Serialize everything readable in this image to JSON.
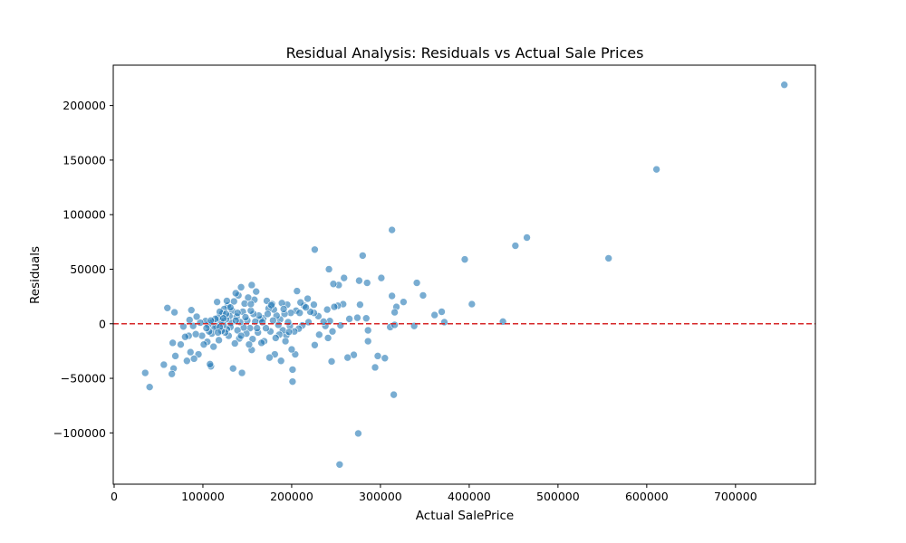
{
  "chart_data": {
    "type": "scatter",
    "title": "Residual Analysis: Residuals vs Actual Sale Prices",
    "xlabel": "Actual SalePrice",
    "ylabel": "Residuals",
    "xlim": [
      -1000,
      790000
    ],
    "ylim": [
      -147000,
      237000
    ],
    "xticks": [
      0,
      100000,
      200000,
      300000,
      400000,
      500000,
      600000,
      700000
    ],
    "xtick_labels": [
      "0",
      "100000",
      "200000",
      "300000",
      "400000",
      "500000",
      "600000",
      "700000"
    ],
    "yticks": [
      -100000,
      -50000,
      0,
      50000,
      100000,
      150000,
      200000
    ],
    "ytick_labels": [
      "−100000",
      "−50000",
      "0",
      "50000",
      "100000",
      "150000",
      "200000"
    ],
    "reference_line": {
      "y": 0,
      "color": "#d62728",
      "style": "dashed"
    },
    "marker_color": "#1f77b4",
    "grid": false,
    "points": [
      {
        "x": 755000,
        "y": 219000
      },
      {
        "x": 611000,
        "y": 141500
      },
      {
        "x": 465000,
        "y": 79000
      },
      {
        "x": 452000,
        "y": 71500
      },
      {
        "x": 557000,
        "y": 60000
      },
      {
        "x": 395000,
        "y": 59000
      },
      {
        "x": 438000,
        "y": 2000
      },
      {
        "x": 403000,
        "y": 18000
      },
      {
        "x": 369000,
        "y": 11000
      },
      {
        "x": 372000,
        "y": 1500
      },
      {
        "x": 361000,
        "y": 8000
      },
      {
        "x": 348000,
        "y": 26000
      },
      {
        "x": 341000,
        "y": 37500
      },
      {
        "x": 338000,
        "y": -2000
      },
      {
        "x": 326000,
        "y": 20000
      },
      {
        "x": 318000,
        "y": 15500
      },
      {
        "x": 316000,
        "y": 10500
      },
      {
        "x": 315000,
        "y": -65000
      },
      {
        "x": 313000,
        "y": 86000
      },
      {
        "x": 313000,
        "y": 25500
      },
      {
        "x": 311000,
        "y": -3000
      },
      {
        "x": 316000,
        "y": -1000
      },
      {
        "x": 305000,
        "y": -31500
      },
      {
        "x": 301000,
        "y": 42000
      },
      {
        "x": 297000,
        "y": -29500
      },
      {
        "x": 294000,
        "y": -40000
      },
      {
        "x": 286000,
        "y": -16000
      },
      {
        "x": 285000,
        "y": 37500
      },
      {
        "x": 284000,
        "y": 5000
      },
      {
        "x": 286000,
        "y": -6000
      },
      {
        "x": 280000,
        "y": 62500
      },
      {
        "x": 276000,
        "y": 39500
      },
      {
        "x": 277000,
        "y": 17500
      },
      {
        "x": 275000,
        "y": -100500
      },
      {
        "x": 274000,
        "y": 5500
      },
      {
        "x": 270000,
        "y": -28500
      },
      {
        "x": 265000,
        "y": 4500
      },
      {
        "x": 263000,
        "y": -31000
      },
      {
        "x": 259000,
        "y": 42000
      },
      {
        "x": 258000,
        "y": 18000
      },
      {
        "x": 255000,
        "y": -1500
      },
      {
        "x": 254000,
        "y": -129000
      },
      {
        "x": 253000,
        "y": 35500
      },
      {
        "x": 252000,
        "y": 16500
      },
      {
        "x": 248000,
        "y": 15500
      },
      {
        "x": 247000,
        "y": 36500
      },
      {
        "x": 245000,
        "y": -34500
      },
      {
        "x": 246000,
        "y": -7000
      },
      {
        "x": 243000,
        "y": 2500
      },
      {
        "x": 242000,
        "y": 50000
      },
      {
        "x": 241000,
        "y": -13000
      },
      {
        "x": 240000,
        "y": 13000
      },
      {
        "x": 238000,
        "y": -2000
      },
      {
        "x": 236000,
        "y": 2000
      },
      {
        "x": 231000,
        "y": -10000
      },
      {
        "x": 230000,
        "y": 7000
      },
      {
        "x": 226000,
        "y": 68000
      },
      {
        "x": 226000,
        "y": -19500
      },
      {
        "x": 225000,
        "y": 10000
      },
      {
        "x": 225000,
        "y": 17500
      },
      {
        "x": 221000,
        "y": 11000
      },
      {
        "x": 219000,
        "y": 1500
      },
      {
        "x": 218000,
        "y": 23000
      },
      {
        "x": 214000,
        "y": 16500
      },
      {
        "x": 212000,
        "y": -1500
      },
      {
        "x": 210000,
        "y": 19500
      },
      {
        "x": 208000,
        "y": -4500
      },
      {
        "x": 206000,
        "y": 30000
      },
      {
        "x": 205000,
        "y": 12000
      },
      {
        "x": 204000,
        "y": -28000
      },
      {
        "x": 203000,
        "y": -7000
      },
      {
        "x": 201000,
        "y": -53000
      },
      {
        "x": 201000,
        "y": -42000
      },
      {
        "x": 200000,
        "y": -23500
      },
      {
        "x": 199000,
        "y": 10000
      },
      {
        "x": 198000,
        "y": -2000
      },
      {
        "x": 196000,
        "y": 1500
      },
      {
        "x": 195000,
        "y": 17500
      },
      {
        "x": 194000,
        "y": -10500
      },
      {
        "x": 193000,
        "y": -16000
      },
      {
        "x": 192000,
        "y": 9000
      },
      {
        "x": 190000,
        "y": -6000
      },
      {
        "x": 189000,
        "y": 19000
      },
      {
        "x": 188000,
        "y": -34000
      },
      {
        "x": 187000,
        "y": 4000
      },
      {
        "x": 186000,
        "y": -10000
      },
      {
        "x": 185000,
        "y": -1000
      },
      {
        "x": 183000,
        "y": 7500
      },
      {
        "x": 181000,
        "y": -28000
      },
      {
        "x": 180000,
        "y": 13000
      },
      {
        "x": 179000,
        "y": 3000
      },
      {
        "x": 178000,
        "y": 18000
      },
      {
        "x": 176000,
        "y": -7000
      },
      {
        "x": 175000,
        "y": -31000
      },
      {
        "x": 174000,
        "y": 14000
      },
      {
        "x": 172000,
        "y": 21000
      },
      {
        "x": 171000,
        "y": -4000
      },
      {
        "x": 169000,
        "y": -16000
      },
      {
        "x": 168000,
        "y": 5000
      },
      {
        "x": 166000,
        "y": -17500
      },
      {
        "x": 165000,
        "y": 4000
      },
      {
        "x": 163000,
        "y": 7500
      },
      {
        "x": 162000,
        "y": -8000
      },
      {
        "x": 160000,
        "y": 29500
      },
      {
        "x": 159000,
        "y": 2000
      },
      {
        "x": 158000,
        "y": 22000
      },
      {
        "x": 157000,
        "y": 9000
      },
      {
        "x": 156000,
        "y": -14000
      },
      {
        "x": 155000,
        "y": 35500
      },
      {
        "x": 155000,
        "y": -24000
      },
      {
        "x": 154000,
        "y": 12000
      },
      {
        "x": 153000,
        "y": -4000
      },
      {
        "x": 151000,
        "y": 24000
      },
      {
        "x": 150000,
        "y": 3000
      },
      {
        "x": 149000,
        "y": -9000
      },
      {
        "x": 147000,
        "y": 18500
      },
      {
        "x": 146000,
        "y": -3500
      },
      {
        "x": 145000,
        "y": 11000
      },
      {
        "x": 144000,
        "y": -45000
      },
      {
        "x": 143000,
        "y": 33500
      },
      {
        "x": 142000,
        "y": 1500
      },
      {
        "x": 141000,
        "y": -13500
      },
      {
        "x": 140000,
        "y": 26000
      },
      {
        "x": 139000,
        "y": -6000
      },
      {
        "x": 138000,
        "y": 6500
      },
      {
        "x": 137000,
        "y": 28000
      },
      {
        "x": 136000,
        "y": -18000
      },
      {
        "x": 135000,
        "y": 20500
      },
      {
        "x": 134000,
        "y": -41000
      },
      {
        "x": 133000,
        "y": 12000
      },
      {
        "x": 132000,
        "y": 1000
      },
      {
        "x": 131000,
        "y": -3000
      },
      {
        "x": 130000,
        "y": 7000
      },
      {
        "x": 129000,
        "y": -11000
      },
      {
        "x": 128000,
        "y": 16500
      },
      {
        "x": 127000,
        "y": -5000
      },
      {
        "x": 126000,
        "y": 4000
      },
      {
        "x": 125000,
        "y": -8000
      },
      {
        "x": 124000,
        "y": 13500
      },
      {
        "x": 123000,
        "y": -1000
      },
      {
        "x": 122000,
        "y": 9500
      },
      {
        "x": 121000,
        "y": -6500
      },
      {
        "x": 120000,
        "y": 2500
      },
      {
        "x": 119000,
        "y": 11000
      },
      {
        "x": 118000,
        "y": -15000
      },
      {
        "x": 117000,
        "y": 5500
      },
      {
        "x": 116000,
        "y": 20000
      },
      {
        "x": 115000,
        "y": -2000
      },
      {
        "x": 113000,
        "y": -4000
      },
      {
        "x": 112000,
        "y": -21000
      },
      {
        "x": 111000,
        "y": 1500
      },
      {
        "x": 110000,
        "y": -9000
      },
      {
        "x": 109000,
        "y": -39000
      },
      {
        "x": 108000,
        "y": -37000
      },
      {
        "x": 107000,
        "y": -7000
      },
      {
        "x": 106000,
        "y": -1000
      },
      {
        "x": 105000,
        "y": -16500
      },
      {
        "x": 104000,
        "y": -4000
      },
      {
        "x": 103000,
        "y": 2500
      },
      {
        "x": 101000,
        "y": -19000
      },
      {
        "x": 99000,
        "y": -11000
      },
      {
        "x": 97000,
        "y": 1000
      },
      {
        "x": 95000,
        "y": -28000
      },
      {
        "x": 93000,
        "y": 6500
      },
      {
        "x": 92000,
        "y": -9500
      },
      {
        "x": 90000,
        "y": -32000
      },
      {
        "x": 89000,
        "y": -2000
      },
      {
        "x": 87000,
        "y": 12500
      },
      {
        "x": 86000,
        "y": -26000
      },
      {
        "x": 85000,
        "y": 3500
      },
      {
        "x": 84000,
        "y": -11000
      },
      {
        "x": 82000,
        "y": -34000
      },
      {
        "x": 80000,
        "y": -12000
      },
      {
        "x": 78000,
        "y": -2500
      },
      {
        "x": 75000,
        "y": -19000
      },
      {
        "x": 69000,
        "y": -29500
      },
      {
        "x": 68000,
        "y": 10500
      },
      {
        "x": 67000,
        "y": -41000
      },
      {
        "x": 66000,
        "y": -17500
      },
      {
        "x": 65000,
        "y": -46000
      },
      {
        "x": 60000,
        "y": 14500
      },
      {
        "x": 56000,
        "y": -37500
      },
      {
        "x": 40000,
        "y": -58000
      },
      {
        "x": 35000,
        "y": -45000
      },
      {
        "x": 152000,
        "y": -19000
      },
      {
        "x": 148000,
        "y": 6000
      },
      {
        "x": 137000,
        "y": 3000
      },
      {
        "x": 126000,
        "y": 9000
      },
      {
        "x": 119000,
        "y": -3000
      },
      {
        "x": 114000,
        "y": 4500
      },
      {
        "x": 131000,
        "y": 15000
      },
      {
        "x": 143000,
        "y": -11000
      },
      {
        "x": 161000,
        "y": -4000
      },
      {
        "x": 167000,
        "y": 1500
      },
      {
        "x": 173000,
        "y": 9000
      },
      {
        "x": 177000,
        "y": 17000
      },
      {
        "x": 182000,
        "y": -13000
      },
      {
        "x": 191000,
        "y": 13500
      },
      {
        "x": 197000,
        "y": -7500
      },
      {
        "x": 209000,
        "y": 10000
      },
      {
        "x": 216000,
        "y": 15000
      },
      {
        "x": 123000,
        "y": 5000
      },
      {
        "x": 117000,
        "y": -8000
      },
      {
        "x": 139000,
        "y": 10000
      },
      {
        "x": 127000,
        "y": 21000
      },
      {
        "x": 154000,
        "y": 18000
      },
      {
        "x": 109000,
        "y": 3000
      }
    ]
  }
}
